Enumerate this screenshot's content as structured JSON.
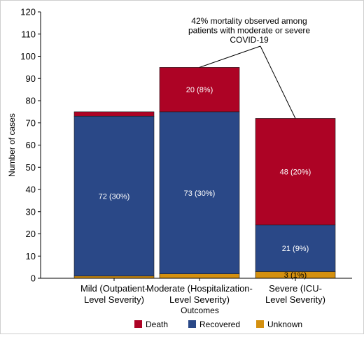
{
  "chart_data": {
    "type": "bar",
    "stacked": true,
    "categories": [
      [
        "Mild (Outpatient-",
        "Level Severity)"
      ],
      [
        "Moderate (Hospitalization-",
        "Level Severity)"
      ],
      [
        "Severe (ICU-",
        "Level Severity)"
      ]
    ],
    "series": [
      {
        "name": "Unknown",
        "color": "#d4900f",
        "values": [
          1,
          2,
          3
        ],
        "labels": [
          "",
          "",
          "3 (1%)"
        ]
      },
      {
        "name": "Recovered",
        "color": "#2a4887",
        "values": [
          72,
          73,
          21
        ],
        "labels": [
          "72 (30%)",
          "73 (30%)",
          "21 (9%)"
        ]
      },
      {
        "name": "Death",
        "color": "#ad0325",
        "values": [
          2,
          20,
          48
        ],
        "labels": [
          "",
          "20 (8%)",
          "48 (20%)"
        ]
      }
    ],
    "legend_order": [
      "Death",
      "Recovered",
      "Unknown"
    ],
    "xlabel": "Outcomes",
    "ylabel": "Number of cases",
    "ylim": [
      0,
      120
    ],
    "yticks": [
      0,
      10,
      20,
      30,
      40,
      50,
      60,
      70,
      80,
      90,
      100,
      110,
      120
    ],
    "grid": false,
    "legend_position": "bottom",
    "annotation": {
      "lines": [
        "42% mortality observed among",
        "patients with moderate or severe",
        "COVID-19"
      ],
      "points_to": [
        "Moderate",
        "Severe"
      ]
    }
  }
}
